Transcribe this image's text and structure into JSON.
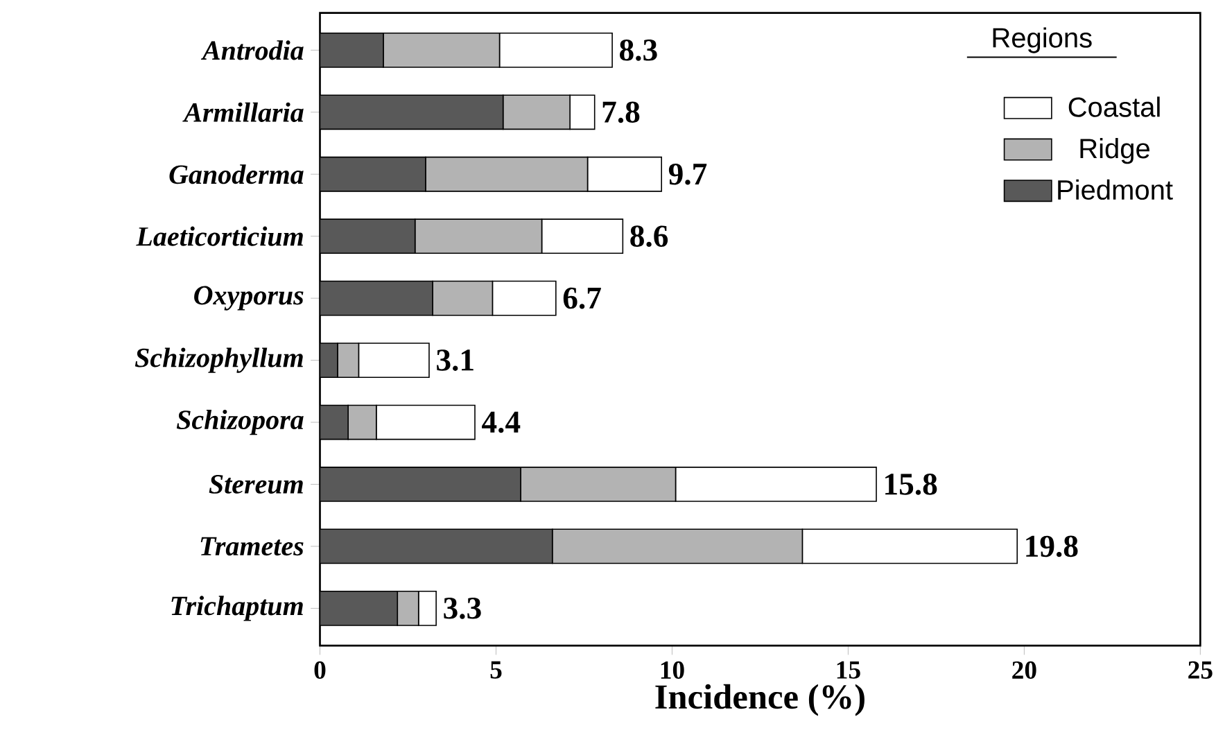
{
  "chart_data": {
    "type": "bar",
    "orientation": "horizontal",
    "stacked": true,
    "xlabel": "Incidence (%)",
    "legend_title": "Regions",
    "legend": "top right",
    "categories": [
      "Antrodia",
      "Armillaria",
      "Ganoderma",
      "Laeticorticium",
      "Oxyporus",
      "Schizophyllum",
      "Schizopora",
      "Stereum",
      "Trametes",
      "Trichaptum"
    ],
    "series": [
      {
        "name": "Piedmont",
        "color": "#595959",
        "values": [
          1.8,
          5.2,
          3.0,
          2.7,
          3.2,
          0.5,
          0.8,
          5.7,
          6.6,
          2.2
        ]
      },
      {
        "name": "Ridge",
        "color": "#b3b3b3",
        "values": [
          3.3,
          1.9,
          4.6,
          3.6,
          1.7,
          0.6,
          0.8,
          4.4,
          7.1,
          0.6
        ]
      },
      {
        "name": "Coastal",
        "color": "#ffffff",
        "values": [
          3.2,
          0.7,
          2.1,
          2.3,
          1.8,
          2.0,
          2.8,
          5.7,
          6.1,
          0.5
        ]
      }
    ],
    "totals": [
      "8.3",
      "7.8",
      "9.7",
      "8.6",
      "6.7",
      "3.1",
      "4.4",
      "15.8",
      "19.8",
      "3.3"
    ],
    "xlim": [
      0,
      25
    ],
    "xticks": [
      0,
      5,
      10,
      15,
      20,
      25
    ]
  }
}
